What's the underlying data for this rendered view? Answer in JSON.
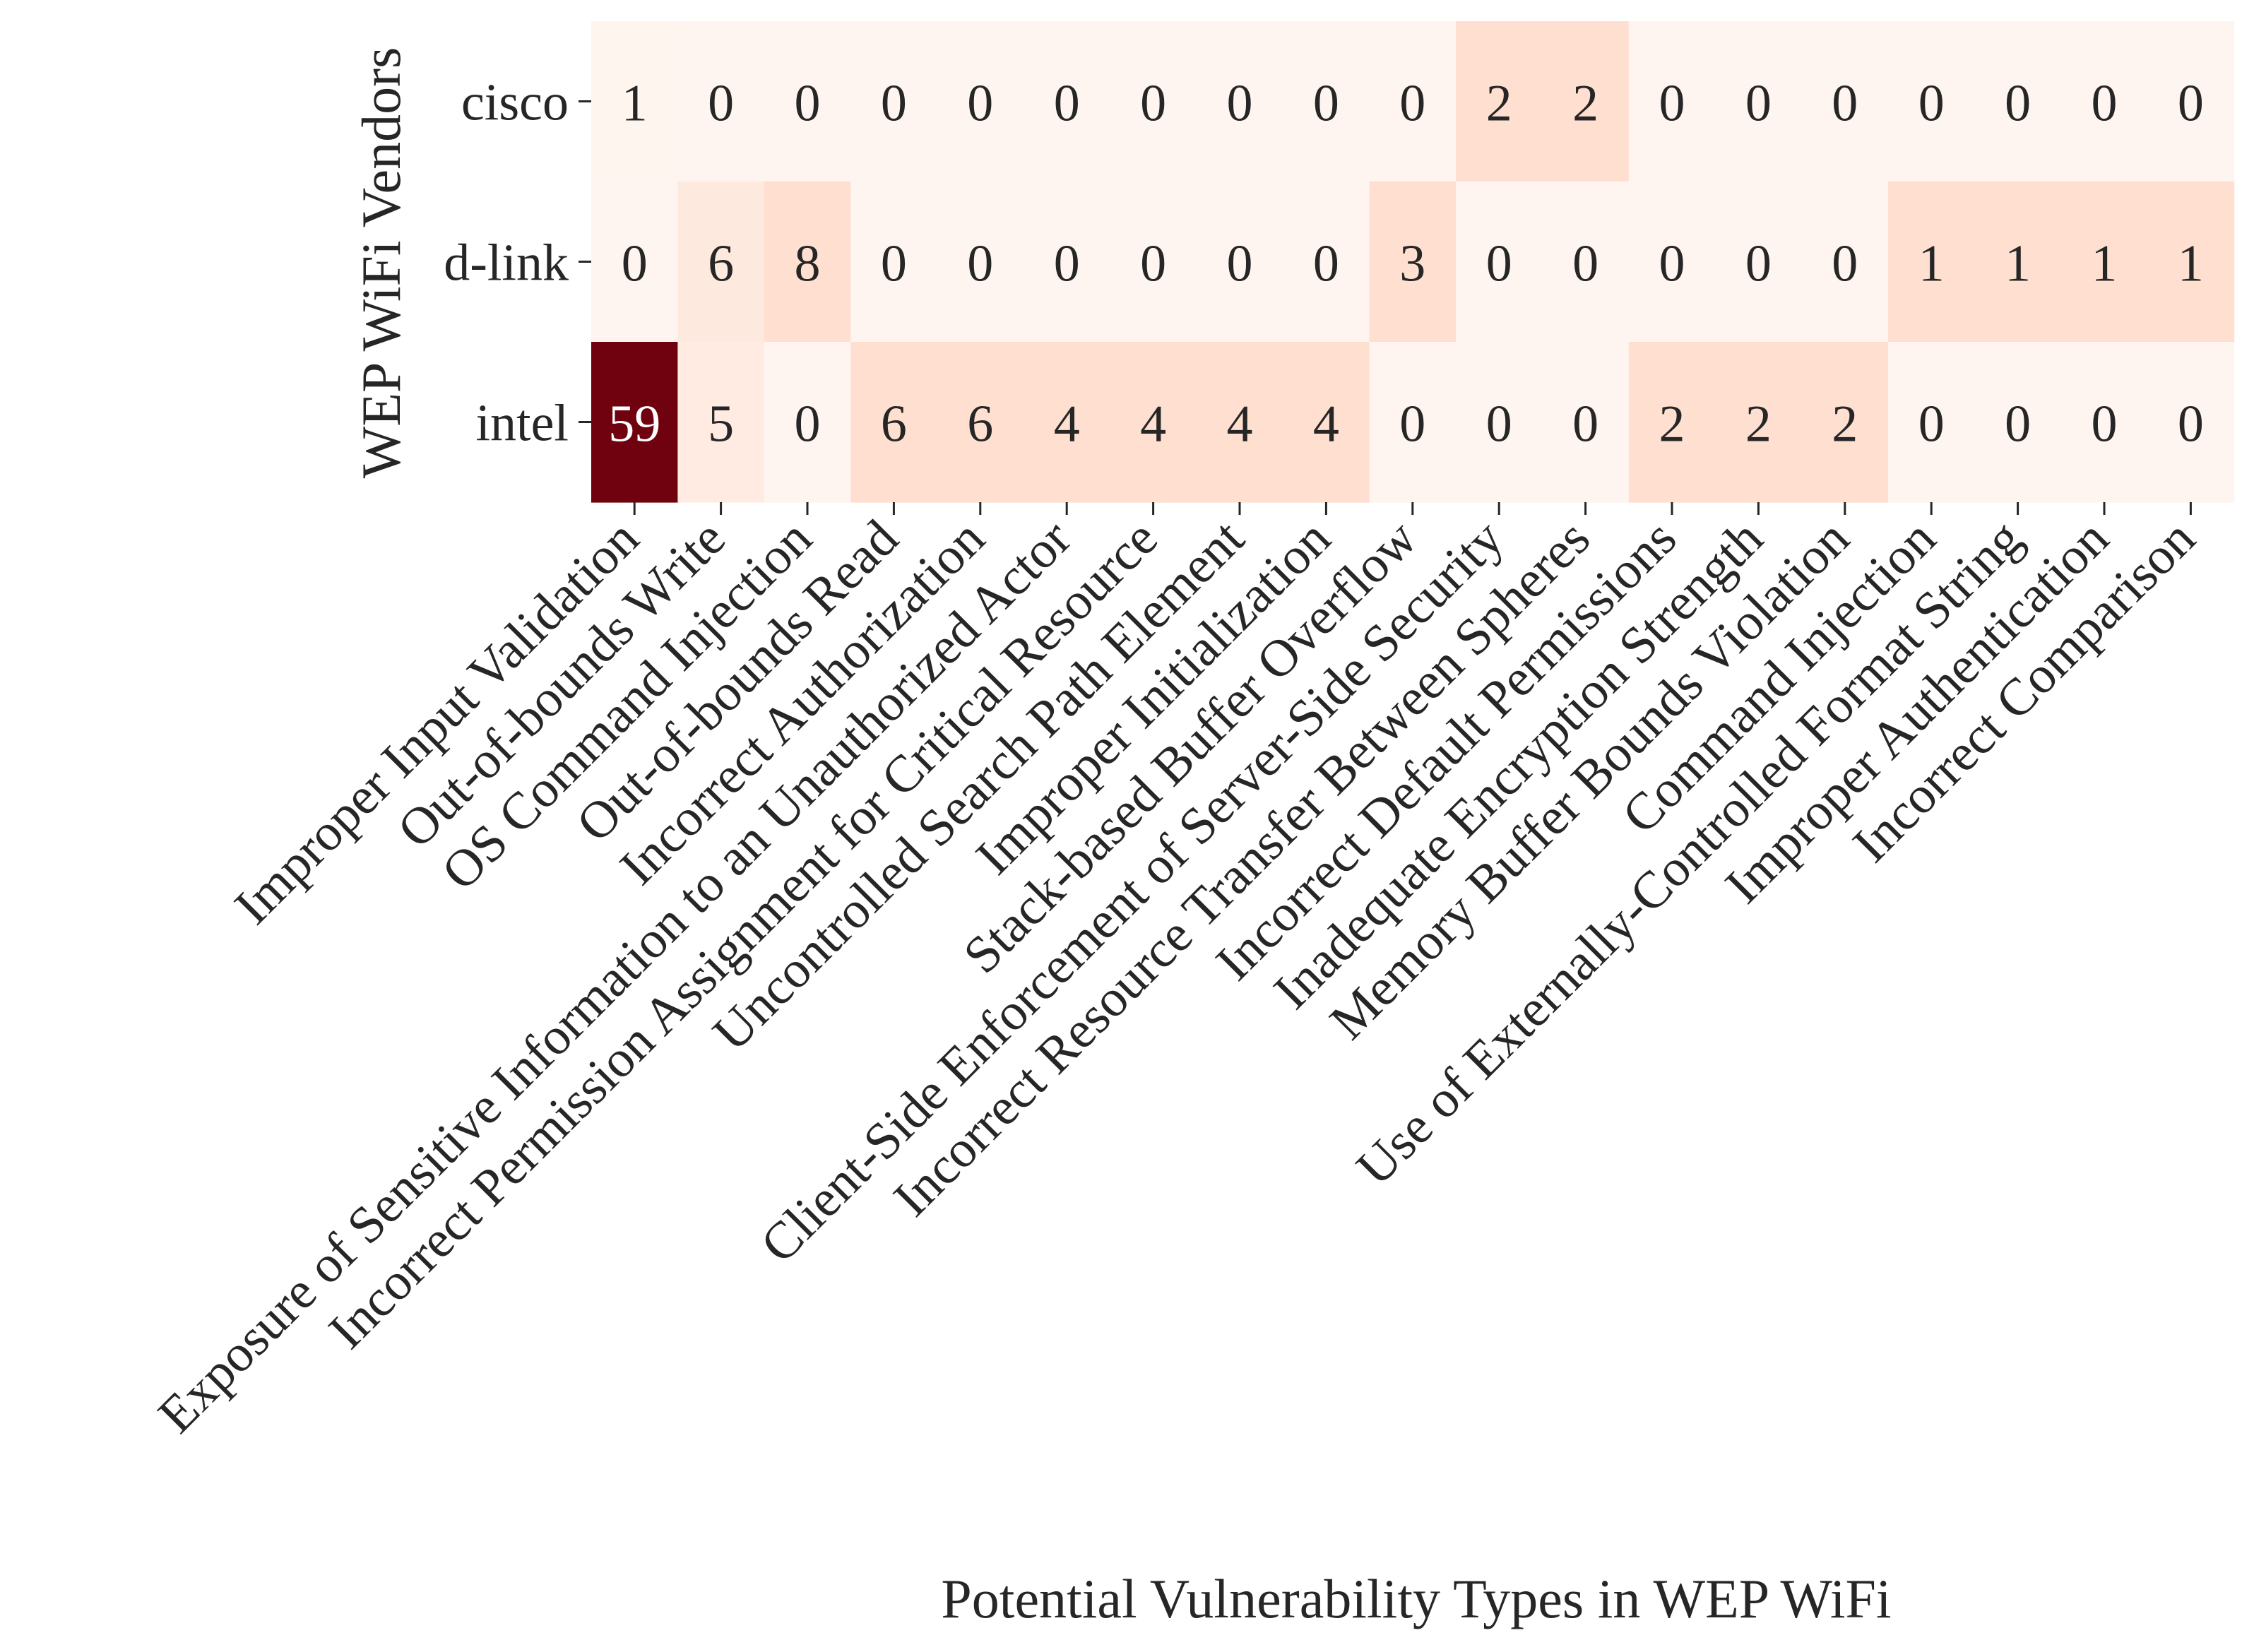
{
  "chart_data": {
    "type": "heatmap",
    "title": "",
    "xlabel": "Potential Vulnerability Types in WEP WiFi",
    "ylabel": "WEP WiFi Vendors",
    "rows": [
      "cisco",
      "d-link",
      "intel"
    ],
    "columns": [
      "Improper Input Validation",
      "Out-of-bounds Write",
      "OS Command Injection",
      "Out-of-bounds Read",
      "Incorrect Authorization",
      "Exposure of Sensitive Information to an Unauthorized Actor",
      "Incorrect Permission Assignment for Critical Resource",
      "Uncontrolled Search Path Element",
      "Improper Initialization",
      "Stack-based Buffer Overflow",
      "Client-Side Enforcement of Server-Side Security",
      "Incorrect Resource Transfer Between Spheres",
      "Incorrect Default Permissions",
      "Inadequate Encryption Strength",
      "Memory Buffer Bounds Violation",
      "Command Injection",
      "Use of Externally-Controlled Format String",
      "Improper Authentication",
      "Incorrect Comparison"
    ],
    "values": [
      [
        1,
        0,
        0,
        0,
        0,
        0,
        0,
        0,
        0,
        0,
        2,
        2,
        0,
        0,
        0,
        0,
        0,
        0,
        0
      ],
      [
        0,
        6,
        8,
        0,
        0,
        0,
        0,
        0,
        0,
        3,
        0,
        0,
        0,
        0,
        0,
        1,
        1,
        1,
        1
      ],
      [
        59,
        5,
        0,
        6,
        6,
        4,
        4,
        4,
        4,
        0,
        0,
        0,
        2,
        2,
        2,
        0,
        0,
        0,
        0
      ]
    ],
    "colormap": "Reds",
    "normalization": "per-column",
    "colorbar": false,
    "annotations": true
  },
  "colors": {
    "background": "#ffffff",
    "text_dark": "#262626",
    "text_light": "#ffffff",
    "cmap_low": "#fff5f0",
    "cmap_high": "#67000d"
  }
}
